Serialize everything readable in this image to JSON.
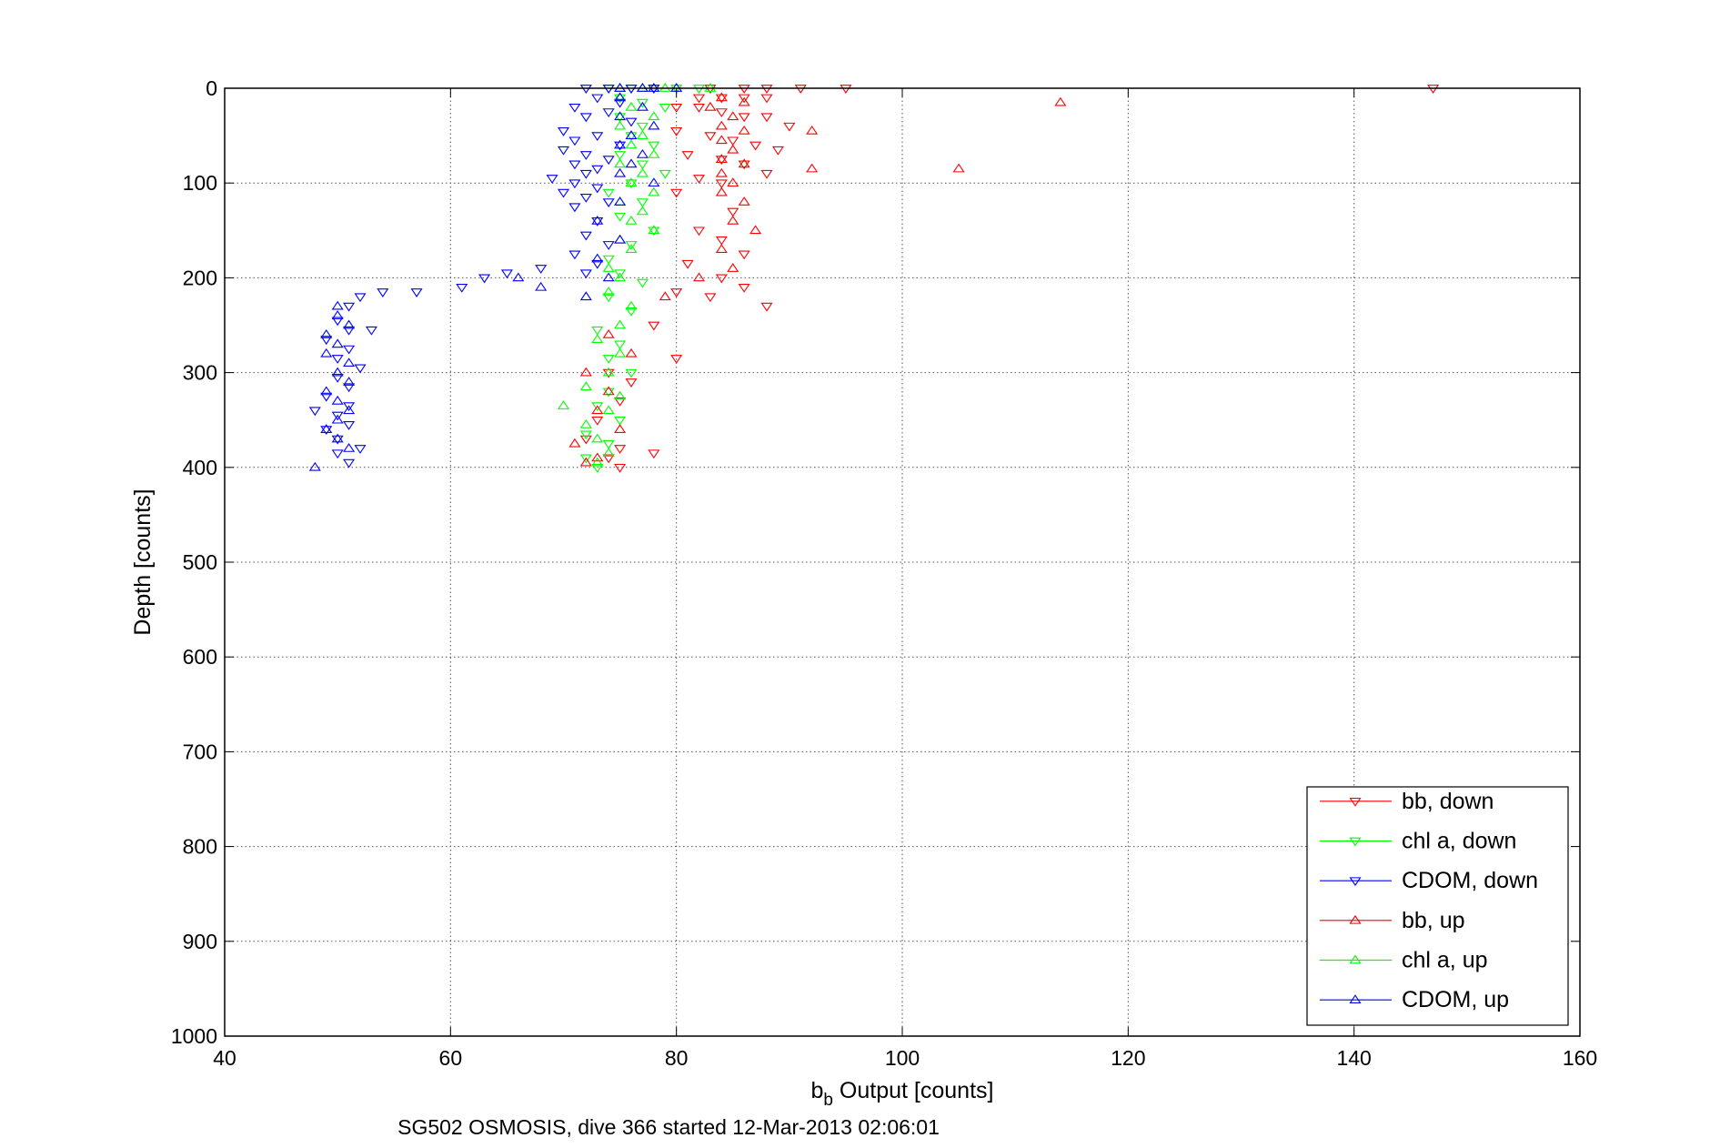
{
  "chart_data": {
    "type": "scatter",
    "title": "",
    "xlabel_main": "b",
    "xlabel_sub": "b",
    "xlabel_rest": " Output [counts]",
    "ylabel": "Depth [counts]",
    "caption": "SG502 OSMOSIS, dive 366 started 12-Mar-2013 02:06:01",
    "xlim": [
      40,
      160
    ],
    "ylim": [
      0,
      1000
    ],
    "y_reversed": true,
    "grid": true,
    "legend_position": "bottom-right",
    "x_ticks": [
      "40",
      "60",
      "80",
      "100",
      "120",
      "140",
      "160"
    ],
    "y_ticks": [
      "0",
      "100",
      "200",
      "300",
      "400",
      "500",
      "600",
      "700",
      "800",
      "900",
      "1000"
    ],
    "series": [
      {
        "name": "bb, down",
        "color": "#ff0000",
        "marker": "triangle-down",
        "points": [
          [
            83,
            0
          ],
          [
            86,
            0
          ],
          [
            88,
            0
          ],
          [
            91,
            0
          ],
          [
            95,
            0
          ],
          [
            147,
            0
          ],
          [
            82,
            10
          ],
          [
            84,
            10
          ],
          [
            86,
            10
          ],
          [
            88,
            10
          ],
          [
            80,
            20
          ],
          [
            82,
            20
          ],
          [
            84,
            25
          ],
          [
            86,
            30
          ],
          [
            88,
            30
          ],
          [
            90,
            40
          ],
          [
            80,
            45
          ],
          [
            83,
            50
          ],
          [
            85,
            55
          ],
          [
            87,
            60
          ],
          [
            89,
            65
          ],
          [
            81,
            70
          ],
          [
            84,
            75
          ],
          [
            86,
            80
          ],
          [
            88,
            90
          ],
          [
            82,
            95
          ],
          [
            84,
            100
          ],
          [
            80,
            110
          ],
          [
            85,
            130
          ],
          [
            82,
            150
          ],
          [
            84,
            160
          ],
          [
            86,
            175
          ],
          [
            81,
            185
          ],
          [
            84,
            200
          ],
          [
            86,
            210
          ],
          [
            80,
            215
          ],
          [
            83,
            220
          ],
          [
            88,
            230
          ],
          [
            78,
            250
          ],
          [
            80,
            285
          ],
          [
            74,
            300
          ],
          [
            76,
            310
          ],
          [
            75,
            330
          ],
          [
            73,
            350
          ],
          [
            72,
            370
          ],
          [
            75,
            380
          ],
          [
            74,
            390
          ],
          [
            78,
            385
          ],
          [
            75,
            400
          ]
        ]
      },
      {
        "name": "chl a, down",
        "color": "#00ff00",
        "marker": "triangle-down",
        "points": [
          [
            74,
            0
          ],
          [
            76,
            0
          ],
          [
            78,
            0
          ],
          [
            80,
            0
          ],
          [
            82,
            0
          ],
          [
            75,
            10
          ],
          [
            77,
            15
          ],
          [
            79,
            20
          ],
          [
            75,
            30
          ],
          [
            77,
            40
          ],
          [
            76,
            50
          ],
          [
            78,
            60
          ],
          [
            75,
            70
          ],
          [
            77,
            80
          ],
          [
            79,
            90
          ],
          [
            76,
            100
          ],
          [
            74,
            110
          ],
          [
            77,
            120
          ],
          [
            75,
            135
          ],
          [
            78,
            150
          ],
          [
            76,
            165
          ],
          [
            74,
            180
          ],
          [
            75,
            195
          ],
          [
            77,
            205
          ],
          [
            74,
            220
          ],
          [
            76,
            235
          ],
          [
            73,
            255
          ],
          [
            75,
            270
          ],
          [
            74,
            285
          ],
          [
            76,
            300
          ],
          [
            74,
            320
          ],
          [
            73,
            335
          ],
          [
            75,
            350
          ],
          [
            72,
            365
          ],
          [
            74,
            375
          ],
          [
            72,
            390
          ],
          [
            73,
            400
          ]
        ]
      },
      {
        "name": "CDOM, down",
        "color": "#0000ff",
        "marker": "triangle-down",
        "points": [
          [
            72,
            0
          ],
          [
            74,
            0
          ],
          [
            76,
            0
          ],
          [
            78,
            0
          ],
          [
            73,
            10
          ],
          [
            75,
            15
          ],
          [
            71,
            20
          ],
          [
            74,
            25
          ],
          [
            72,
            30
          ],
          [
            76,
            35
          ],
          [
            70,
            45
          ],
          [
            73,
            50
          ],
          [
            71,
            55
          ],
          [
            75,
            60
          ],
          [
            70,
            65
          ],
          [
            72,
            70
          ],
          [
            74,
            75
          ],
          [
            71,
            80
          ],
          [
            73,
            85
          ],
          [
            72,
            90
          ],
          [
            69,
            95
          ],
          [
            71,
            100
          ],
          [
            73,
            105
          ],
          [
            70,
            110
          ],
          [
            72,
            115
          ],
          [
            74,
            120
          ],
          [
            71,
            125
          ],
          [
            73,
            140
          ],
          [
            72,
            155
          ],
          [
            74,
            165
          ],
          [
            71,
            175
          ],
          [
            73,
            185
          ],
          [
            72,
            195
          ],
          [
            68,
            190
          ],
          [
            65,
            195
          ],
          [
            63,
            200
          ],
          [
            61,
            210
          ],
          [
            57,
            215
          ],
          [
            54,
            215
          ],
          [
            52,
            220
          ],
          [
            51,
            230
          ],
          [
            50,
            245
          ],
          [
            51,
            255
          ],
          [
            53,
            255
          ],
          [
            49,
            265
          ],
          [
            51,
            275
          ],
          [
            50,
            285
          ],
          [
            52,
            295
          ],
          [
            50,
            305
          ],
          [
            51,
            315
          ],
          [
            49,
            325
          ],
          [
            51,
            335
          ],
          [
            50,
            345
          ],
          [
            48,
            340
          ],
          [
            51,
            355
          ],
          [
            49,
            360
          ],
          [
            50,
            370
          ],
          [
            52,
            380
          ],
          [
            50,
            385
          ],
          [
            51,
            395
          ]
        ]
      },
      {
        "name": "bb, up",
        "color": "#ff0000",
        "marker": "triangle-up",
        "points": [
          [
            84,
            10
          ],
          [
            86,
            15
          ],
          [
            83,
            20
          ],
          [
            85,
            30
          ],
          [
            84,
            40
          ],
          [
            86,
            45
          ],
          [
            84,
            55
          ],
          [
            92,
            45
          ],
          [
            85,
            65
          ],
          [
            84,
            75
          ],
          [
            86,
            80
          ],
          [
            84,
            90
          ],
          [
            92,
            85
          ],
          [
            105,
            85
          ],
          [
            114,
            15
          ],
          [
            85,
            100
          ],
          [
            84,
            110
          ],
          [
            86,
            120
          ],
          [
            85,
            140
          ],
          [
            87,
            150
          ],
          [
            84,
            170
          ],
          [
            85,
            190
          ],
          [
            82,
            200
          ],
          [
            79,
            220
          ],
          [
            74,
            260
          ],
          [
            76,
            280
          ],
          [
            72,
            300
          ],
          [
            74,
            320
          ],
          [
            73,
            340
          ],
          [
            75,
            360
          ],
          [
            71,
            375
          ],
          [
            73,
            390
          ],
          [
            72,
            395
          ]
        ]
      },
      {
        "name": "chl a, up",
        "color": "#00ff00",
        "marker": "triangle-up",
        "points": [
          [
            75,
            0
          ],
          [
            77,
            0
          ],
          [
            79,
            0
          ],
          [
            83,
            0
          ],
          [
            75,
            10
          ],
          [
            76,
            20
          ],
          [
            78,
            30
          ],
          [
            75,
            40
          ],
          [
            77,
            50
          ],
          [
            76,
            60
          ],
          [
            78,
            70
          ],
          [
            75,
            80
          ],
          [
            77,
            90
          ],
          [
            76,
            100
          ],
          [
            78,
            110
          ],
          [
            75,
            120
          ],
          [
            77,
            130
          ],
          [
            76,
            140
          ],
          [
            78,
            150
          ],
          [
            75,
            160
          ],
          [
            76,
            170
          ],
          [
            74,
            190
          ],
          [
            75,
            200
          ],
          [
            74,
            215
          ],
          [
            76,
            230
          ],
          [
            75,
            250
          ],
          [
            73,
            265
          ],
          [
            75,
            280
          ],
          [
            74,
            300
          ],
          [
            72,
            315
          ],
          [
            75,
            325
          ],
          [
            70,
            335
          ],
          [
            74,
            340
          ],
          [
            72,
            355
          ],
          [
            73,
            370
          ],
          [
            74,
            385
          ],
          [
            73,
            395
          ]
        ]
      },
      {
        "name": "CDOM, up",
        "color": "#0000ff",
        "marker": "triangle-up",
        "points": [
          [
            75,
            0
          ],
          [
            77,
            0
          ],
          [
            78,
            0
          ],
          [
            75,
            10
          ],
          [
            77,
            20
          ],
          [
            75,
            30
          ],
          [
            78,
            40
          ],
          [
            76,
            50
          ],
          [
            75,
            60
          ],
          [
            77,
            70
          ],
          [
            76,
            80
          ],
          [
            75,
            90
          ],
          [
            78,
            100
          ],
          [
            75,
            120
          ],
          [
            73,
            140
          ],
          [
            75,
            160
          ],
          [
            73,
            180
          ],
          [
            74,
            200
          ],
          [
            72,
            220
          ],
          [
            50,
            230
          ],
          [
            50,
            240
          ],
          [
            51,
            250
          ],
          [
            49,
            260
          ],
          [
            50,
            270
          ],
          [
            51,
            290
          ],
          [
            50,
            300
          ],
          [
            51,
            310
          ],
          [
            49,
            320
          ],
          [
            50,
            330
          ],
          [
            51,
            340
          ],
          [
            50,
            350
          ],
          [
            49,
            360
          ],
          [
            50,
            370
          ],
          [
            51,
            380
          ],
          [
            48,
            400
          ],
          [
            49,
            280
          ],
          [
            80,
            0
          ],
          [
            66,
            200
          ],
          [
            68,
            210
          ]
        ]
      }
    ]
  }
}
